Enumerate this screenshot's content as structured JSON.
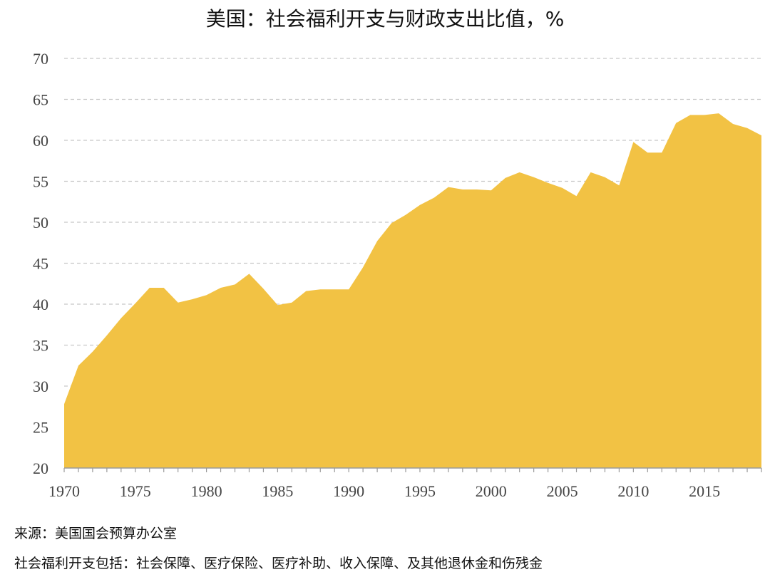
{
  "title": "美国：社会福利开支与财政支出比值，%",
  "source_note": "来源：美国国会预算办公室",
  "definition_note": "社会福利开支包括：社会保障、医疗保险、医疗补助、收入保障、及其他退休金和伤残金",
  "colors": {
    "area": "#F2C244",
    "grid": "#c8c8c8",
    "axis": "#9a9a9a",
    "text": "#444444"
  },
  "chart_data": {
    "type": "area",
    "title": "美国：社会福利开支与财政支出比值，%",
    "xlabel": "",
    "ylabel": "",
    "xlim": [
      1970,
      2019
    ],
    "ylim": [
      20,
      70
    ],
    "y_ticks": [
      20,
      25,
      30,
      35,
      40,
      45,
      50,
      55,
      60,
      65,
      70
    ],
    "x_ticks": [
      1970,
      1975,
      1980,
      1985,
      1990,
      1995,
      2000,
      2005,
      2010,
      2015
    ],
    "grid": "horizontal dashed",
    "legend": "none",
    "x": [
      1970,
      1971,
      1972,
      1973,
      1974,
      1975,
      1976,
      1977,
      1978,
      1979,
      1980,
      1981,
      1982,
      1983,
      1984,
      1985,
      1986,
      1987,
      1988,
      1989,
      1990,
      1991,
      1992,
      1993,
      1994,
      1995,
      1996,
      1997,
      1998,
      1999,
      2000,
      2001,
      2002,
      2003,
      2004,
      2005,
      2006,
      2007,
      2008,
      2009,
      2010,
      2011,
      2012,
      2013,
      2014,
      2015,
      2016,
      2017,
      2018,
      2019
    ],
    "values": [
      27.8,
      32.5,
      34.2,
      36.2,
      38.3,
      40.1,
      42.0,
      42.0,
      40.2,
      40.6,
      41.1,
      42.0,
      42.4,
      43.7,
      41.9,
      39.9,
      40.2,
      41.6,
      41.8,
      41.8,
      41.8,
      44.5,
      47.7,
      49.9,
      50.9,
      52.1,
      53.0,
      54.3,
      54.0,
      54.0,
      53.9,
      55.4,
      56.1,
      55.5,
      54.8,
      54.2,
      53.2,
      56.1,
      55.5,
      54.5,
      59.8,
      58.5,
      58.5,
      62.1,
      63.1,
      63.1,
      63.3,
      62.0,
      61.5,
      60.6
    ]
  }
}
